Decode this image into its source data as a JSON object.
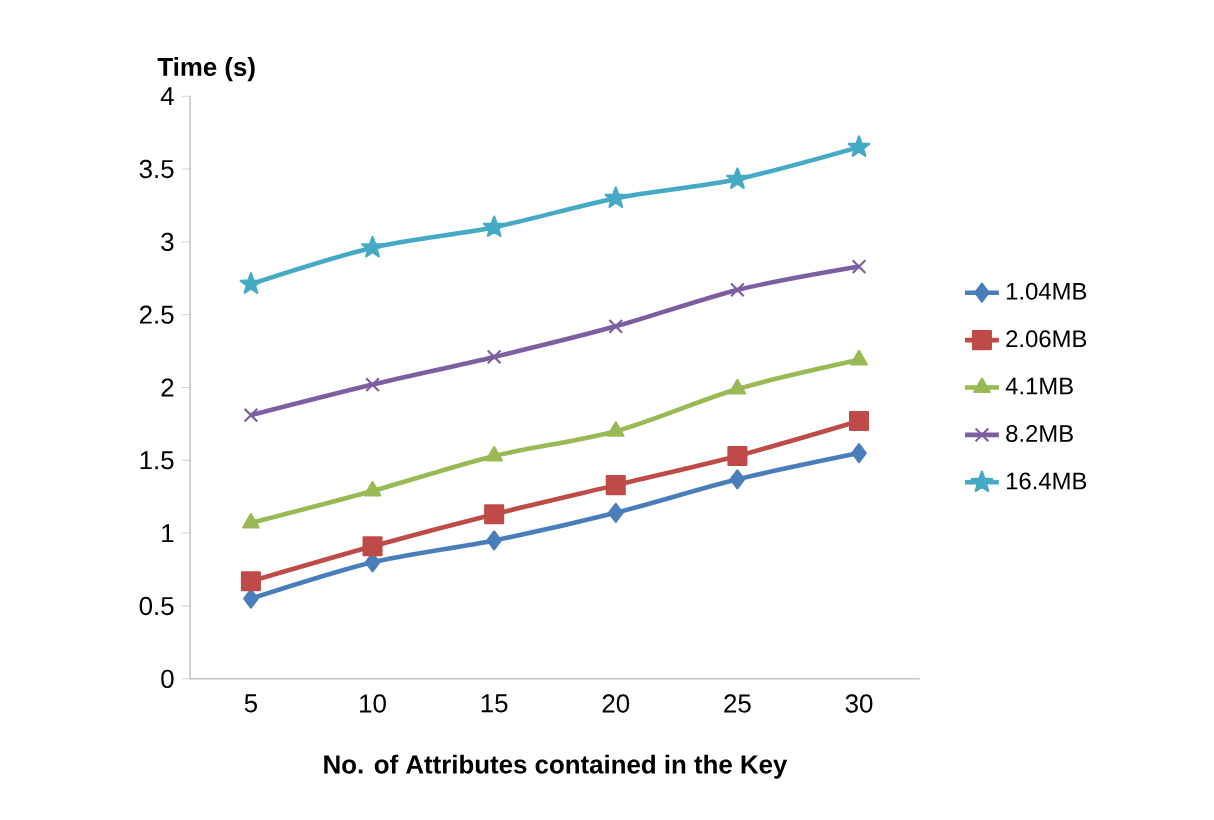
{
  "chart_data": {
    "type": "line",
    "ylabel": "Time (s)",
    "xlabel": "No. of Attributes contained in the Key",
    "categories": [
      "5",
      "10",
      "15",
      "20",
      "25",
      "30"
    ],
    "series": [
      {
        "name": "1.04MB",
        "color": "#4a7ebb",
        "marker": "diamond",
        "values": [
          0.55,
          0.8,
          0.95,
          1.14,
          1.37,
          1.55
        ]
      },
      {
        "name": "2.06MB",
        "color": "#be4b48",
        "marker": "square",
        "values": [
          0.67,
          0.91,
          1.13,
          1.33,
          1.53,
          1.77
        ]
      },
      {
        "name": "4.1MB",
        "color": "#98b954",
        "marker": "triangle",
        "values": [
          1.07,
          1.29,
          1.53,
          1.7,
          1.99,
          2.19
        ]
      },
      {
        "name": "8.2MB",
        "color": "#7d5fa0",
        "marker": "cross",
        "values": [
          1.81,
          2.02,
          2.21,
          2.42,
          2.67,
          2.83
        ]
      },
      {
        "name": "16.4MB",
        "color": "#46aac5",
        "marker": "star",
        "values": [
          2.71,
          2.96,
          3.1,
          3.3,
          3.43,
          3.65
        ]
      }
    ],
    "ylim": [
      0,
      4
    ],
    "yticks": [
      0,
      0.5,
      1,
      1.5,
      2,
      2.5,
      3,
      3.5,
      4
    ],
    "grid": false,
    "legend": "right"
  }
}
